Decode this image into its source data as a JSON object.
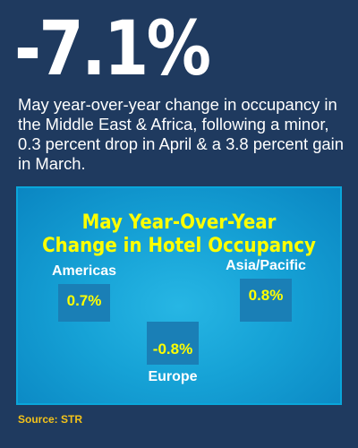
{
  "headline": "-7.1%",
  "description": "May year-over-year change in occupancy in the Middle East & Africa, following a minor, 0.3 percent drop in April & a 3.8 percent gain in March.",
  "source": "Source: STR",
  "colors": {
    "background": "#1f3a5f",
    "panel": "#16a2d6",
    "bar": "#1a7fb6",
    "title": "#ffff00",
    "value_label": "#ffff00",
    "category_label": "#ffffff",
    "source": "#f3c21a"
  },
  "chart_data": {
    "type": "bar",
    "title": "May Year-Over-Year Change in Hotel Occupancy",
    "title_lines": [
      "May Year-Over-Year",
      "Change in Hotel Occupancy"
    ],
    "categories": [
      "Americas",
      "Europe",
      "Asia/Pacific"
    ],
    "values": [
      0.7,
      -0.8,
      0.8
    ],
    "value_labels": [
      "0.7%",
      "-0.8%",
      "0.8%"
    ],
    "xlabel": "",
    "ylabel": "",
    "unit": "%",
    "ylim": [
      -0.8,
      0.8
    ],
    "grid": false,
    "legend": "none"
  }
}
